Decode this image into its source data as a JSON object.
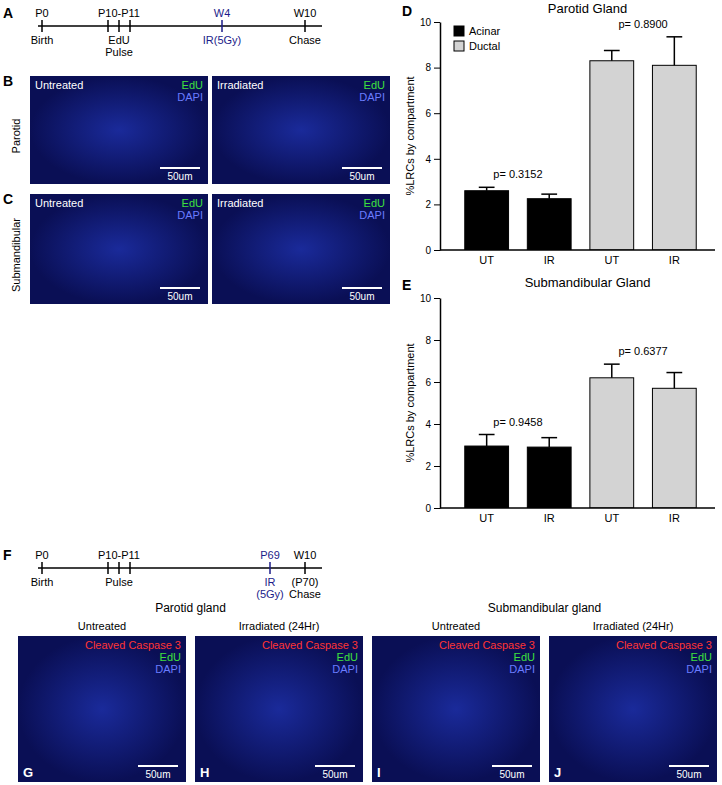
{
  "timelines": [
    {
      "label": "A",
      "events": [
        {
          "above": [
            "P0"
          ],
          "below": [
            "Birth"
          ]
        },
        {
          "above": [
            "P10-P11"
          ],
          "below": [
            "EdU",
            "Pulse"
          ]
        },
        {
          "above": [
            "W4"
          ],
          "below": [
            "IR(5Gy)"
          ],
          "color": "#1c1c8a"
        },
        {
          "above": [
            "W10"
          ],
          "below": [
            "Chase"
          ]
        }
      ]
    },
    {
      "label": "F",
      "events": [
        {
          "above": [
            "P0"
          ],
          "below": [
            "Birth"
          ]
        },
        {
          "above": [
            "P10-P11"
          ],
          "below": [
            "Pulse"
          ]
        },
        {
          "above": [
            "P69"
          ],
          "below": [
            "IR",
            "(5Gy)"
          ],
          "color": "#1c1c8a"
        },
        {
          "above": [
            "W10"
          ],
          "below": [
            "(P70)",
            "Chase"
          ]
        }
      ]
    }
  ],
  "image_rows": [
    {
      "label": "B",
      "row_label": "Parotid",
      "images": [
        {
          "title": "Untreated",
          "channels": [
            {
              "text": "EdU",
              "color": "#3ee03e"
            },
            {
              "text": "DAPI",
              "color": "#6a7cff"
            }
          ],
          "scale_bar": "50um"
        },
        {
          "title": "Irradiated",
          "channels": [
            {
              "text": "EdU",
              "color": "#3ee03e"
            },
            {
              "text": "DAPI",
              "color": "#6a7cff"
            }
          ],
          "scale_bar": "50um"
        }
      ]
    },
    {
      "label": "C",
      "row_label": "Submandibular",
      "images": [
        {
          "title": "Untreated",
          "channels": [
            {
              "text": "EdU",
              "color": "#3ee03e"
            },
            {
              "text": "DAPI",
              "color": "#6a7cff"
            }
          ],
          "scale_bar": "50um"
        },
        {
          "title": "Irradiated",
          "channels": [
            {
              "text": "EdU",
              "color": "#3ee03e"
            },
            {
              "text": "DAPI",
              "color": "#6a7cff"
            }
          ],
          "scale_bar": "50um"
        }
      ]
    }
  ],
  "image_groups": [
    {
      "title": "Parotid gland",
      "images": [
        {
          "label": "G",
          "title": "Untreated",
          "channels": [
            {
              "text": "Cleaved Caspase 3",
              "color": "#ff3434"
            },
            {
              "text": "EdU",
              "color": "#3ee03e"
            },
            {
              "text": "DAPI",
              "color": "#6a7cff"
            }
          ],
          "scale_bar": "50um"
        },
        {
          "label": "H",
          "title": "Irradiated (24Hr)",
          "channels": [
            {
              "text": "Cleaved Caspase 3",
              "color": "#ff3434"
            },
            {
              "text": "EdU",
              "color": "#3ee03e"
            },
            {
              "text": "DAPI",
              "color": "#6a7cff"
            }
          ],
          "scale_bar": "50um"
        }
      ]
    },
    {
      "title": "Submandibular gland",
      "images": [
        {
          "label": "I",
          "title": "Untreated",
          "channels": [
            {
              "text": "Cleaved Caspase 3",
              "color": "#ff3434"
            },
            {
              "text": "EdU",
              "color": "#3ee03e"
            },
            {
              "text": "DAPI",
              "color": "#6a7cff"
            }
          ],
          "scale_bar": "50um"
        },
        {
          "label": "J",
          "title": "Irradiated (24Hr)",
          "channels": [
            {
              "text": "Cleaved Caspase 3",
              "color": "#ff3434"
            },
            {
              "text": "EdU",
              "color": "#3ee03e"
            },
            {
              "text": "DAPI",
              "color": "#6a7cff"
            }
          ],
          "scale_bar": "50um"
        }
      ]
    }
  ],
  "chart_labels": [
    "D",
    "E"
  ],
  "chart_data": [
    {
      "type": "bar",
      "title": "Parotid Gland",
      "ylabel": "%LRCs by compartment",
      "categories": [
        "UT",
        "IR",
        "UT",
        "IR"
      ],
      "series": [
        {
          "name": "Acinar",
          "color": "#000000",
          "values": [
            2.6,
            2.25,
            null,
            null
          ],
          "errors": [
            0.15,
            0.2,
            null,
            null
          ]
        },
        {
          "name": "Ductal",
          "color": "#d3d3d3",
          "values": [
            null,
            null,
            8.3,
            8.1
          ],
          "errors": [
            null,
            null,
            0.45,
            1.25
          ]
        }
      ],
      "ylim": [
        0,
        10
      ],
      "yticks": [
        0,
        2,
        4,
        6,
        8,
        10
      ],
      "legend": "upper left",
      "annotations": [
        "p= 0.3152",
        "p= 0.8900"
      ]
    },
    {
      "type": "bar",
      "title": "Submandibular Gland",
      "ylabel": "%LRCs by compartment",
      "categories": [
        "UT",
        "IR",
        "UT",
        "IR"
      ],
      "series": [
        {
          "color": "#000000",
          "values": [
            2.95,
            2.9,
            null,
            null
          ],
          "errors": [
            0.55,
            0.45,
            null,
            null
          ]
        },
        {
          "color": "#d3d3d3",
          "values": [
            null,
            null,
            6.2,
            5.7
          ],
          "errors": [
            null,
            null,
            0.65,
            0.75
          ]
        }
      ],
      "ylim": [
        0,
        10
      ],
      "yticks": [
        0,
        2,
        4,
        6,
        8,
        10
      ],
      "annotations": [
        "p= 0.9458",
        "p= 0.6377"
      ]
    }
  ]
}
